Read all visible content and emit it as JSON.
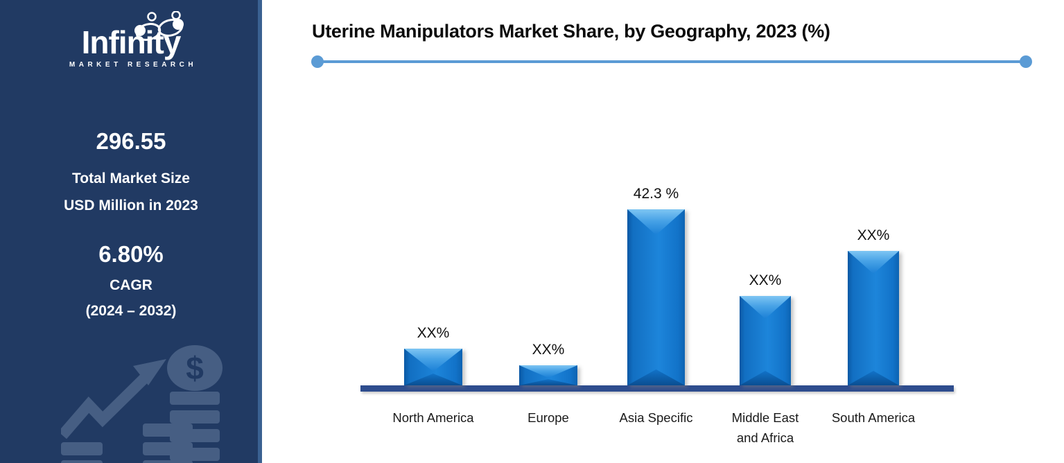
{
  "sidebar": {
    "logo": {
      "brand": "Infinity",
      "tagline": "MARKET RESEARCH"
    },
    "market_size": {
      "value": "296.55",
      "label_line1": "Total Market Size",
      "label_line2": "USD Million in 2023"
    },
    "cagr": {
      "value": "6.80%",
      "label": "CAGR",
      "period": "(2024 – 2032)"
    },
    "watermark_icon": "growth-arrow-coin-stacks-icon"
  },
  "main": {
    "title": "Uterine Manipulators Market Share, by Geography, 2023 (%)"
  },
  "chart_data": {
    "type": "bar",
    "title": "Uterine Manipulators Market Share, by Geography, 2023 (%)",
    "categories": [
      "North America",
      "Europe",
      "Asia Specific",
      "Middle East and Africa",
      "South America"
    ],
    "values": [
      8.8,
      4.8,
      42.3,
      21.5,
      32.3
    ],
    "value_labels": [
      "XX%",
      "XX%",
      "42.3 %",
      "XX%",
      "XX%"
    ],
    "masked_values": [
      true,
      true,
      false,
      true,
      true
    ],
    "unit": "%",
    "xlabel": "",
    "ylabel": "",
    "ylim": [
      0,
      45
    ],
    "grid": false,
    "legend": "none",
    "bar_color": "#1277ce"
  },
  "colors": {
    "sidebar_bg": "#213a63",
    "sidebar_divider": "#3a6191",
    "watermark": "#4a6286",
    "bar_blue": "#1277ce",
    "bar_bevel_light": "#7ec5f3",
    "axis_navy": "#2e4d8e",
    "title_underline": "#5b9bd5",
    "title_text": "#0b0b0b",
    "sidebar_text": "#ffffff"
  }
}
